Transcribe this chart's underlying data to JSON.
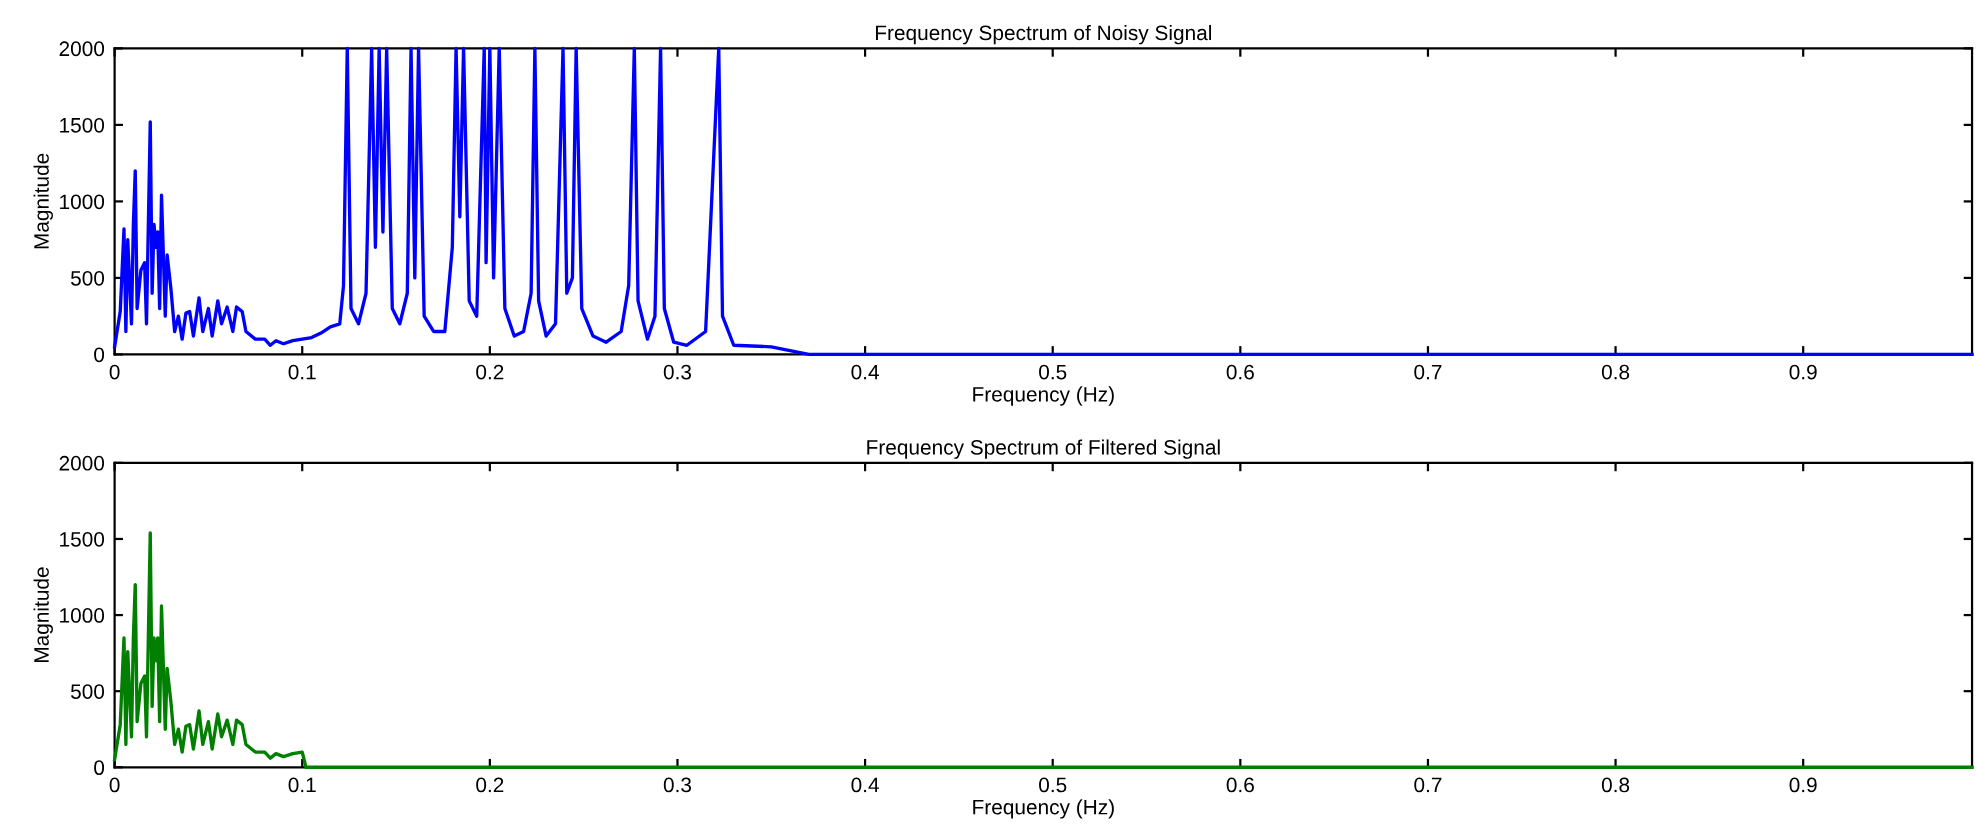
{
  "chart_data": [
    {
      "type": "line",
      "title": "Frequency Spectrum of Noisy Signal",
      "xlabel": "Frequency (Hz)",
      "ylabel": "Magnitude",
      "color": "#0000ff",
      "xlim": [
        0,
        0.99
      ],
      "ylim": [
        0,
        2000
      ],
      "xticks": [
        0,
        0.1,
        0.2,
        0.3,
        0.4,
        0.5,
        0.6,
        0.7,
        0.8,
        0.9
      ],
      "yticks": [
        0,
        500,
        1000,
        1500,
        2000
      ],
      "x": [
        0,
        0.003,
        0.005,
        0.006,
        0.007,
        0.009,
        0.01,
        0.011,
        0.012,
        0.014,
        0.016,
        0.017,
        0.019,
        0.02,
        0.021,
        0.022,
        0.023,
        0.024,
        0.025,
        0.027,
        0.028,
        0.03,
        0.032,
        0.034,
        0.036,
        0.038,
        0.04,
        0.042,
        0.045,
        0.047,
        0.05,
        0.052,
        0.055,
        0.057,
        0.06,
        0.063,
        0.065,
        0.068,
        0.07,
        0.075,
        0.08,
        0.083,
        0.086,
        0.09,
        0.095,
        0.1,
        0.105,
        0.11,
        0.115,
        0.12,
        0.122,
        0.124,
        0.126,
        0.13,
        0.134,
        0.137,
        0.139,
        0.141,
        0.143,
        0.145,
        0.148,
        0.152,
        0.156,
        0.158,
        0.16,
        0.162,
        0.165,
        0.17,
        0.176,
        0.18,
        0.182,
        0.184,
        0.186,
        0.189,
        0.193,
        0.197,
        0.198,
        0.2,
        0.202,
        0.205,
        0.208,
        0.213,
        0.218,
        0.222,
        0.224,
        0.226,
        0.23,
        0.235,
        0.239,
        0.241,
        0.244,
        0.246,
        0.249,
        0.255,
        0.262,
        0.27,
        0.274,
        0.277,
        0.279,
        0.284,
        0.288,
        0.291,
        0.293,
        0.298,
        0.305,
        0.315,
        0.322,
        0.324,
        0.33,
        0.35,
        0.37,
        0.4,
        0.45,
        0.5,
        0.6,
        0.7,
        0.8,
        0.9,
        0.99
      ],
      "values": [
        50,
        280,
        820,
        150,
        750,
        200,
        850,
        1200,
        300,
        550,
        600,
        200,
        1520,
        400,
        850,
        700,
        800,
        300,
        1040,
        250,
        650,
        430,
        150,
        250,
        100,
        270,
        280,
        120,
        370,
        150,
        300,
        120,
        350,
        200,
        310,
        150,
        310,
        280,
        150,
        100,
        100,
        60,
        90,
        70,
        90,
        100,
        110,
        140,
        180,
        200,
        450,
        2000,
        300,
        200,
        400,
        2000,
        700,
        2000,
        800,
        2000,
        300,
        200,
        400,
        2000,
        500,
        2000,
        250,
        150,
        150,
        700,
        2000,
        900,
        2000,
        350,
        250,
        2000,
        600,
        2000,
        500,
        2000,
        300,
        120,
        150,
        400,
        2000,
        350,
        120,
        200,
        2000,
        400,
        500,
        2000,
        300,
        120,
        80,
        150,
        450,
        2000,
        350,
        100,
        250,
        2000,
        300,
        80,
        60,
        150,
        2000,
        250,
        60,
        50,
        0,
        0,
        0,
        0,
        0,
        0,
        0,
        0,
        0
      ]
    },
    {
      "type": "line",
      "title": "Frequency Spectrum of Filtered Signal",
      "xlabel": "Frequency (Hz)",
      "ylabel": "Magnitude",
      "color": "#007f00",
      "xlim": [
        0,
        0.99
      ],
      "ylim": [
        0,
        2000
      ],
      "xticks": [
        0,
        0.1,
        0.2,
        0.3,
        0.4,
        0.5,
        0.6,
        0.7,
        0.8,
        0.9
      ],
      "yticks": [
        0,
        500,
        1000,
        1500,
        2000
      ],
      "x": [
        0,
        0.003,
        0.005,
        0.006,
        0.007,
        0.009,
        0.01,
        0.011,
        0.012,
        0.014,
        0.016,
        0.017,
        0.019,
        0.02,
        0.021,
        0.022,
        0.023,
        0.024,
        0.025,
        0.027,
        0.028,
        0.03,
        0.032,
        0.034,
        0.036,
        0.038,
        0.04,
        0.042,
        0.045,
        0.047,
        0.05,
        0.052,
        0.055,
        0.057,
        0.06,
        0.063,
        0.065,
        0.068,
        0.07,
        0.075,
        0.08,
        0.083,
        0.086,
        0.09,
        0.095,
        0.1,
        0.102,
        0.2,
        0.3,
        0.4,
        0.5,
        0.6,
        0.7,
        0.8,
        0.9,
        0.99
      ],
      "values": [
        50,
        280,
        850,
        150,
        760,
        200,
        850,
        1200,
        300,
        550,
        600,
        200,
        1540,
        400,
        850,
        700,
        850,
        300,
        1060,
        250,
        650,
        430,
        150,
        250,
        100,
        270,
        280,
        120,
        370,
        150,
        300,
        120,
        350,
        200,
        310,
        150,
        310,
        280,
        150,
        100,
        100,
        60,
        90,
        70,
        90,
        100,
        0,
        0,
        0,
        0,
        0,
        0,
        0,
        0,
        0,
        0
      ]
    }
  ]
}
